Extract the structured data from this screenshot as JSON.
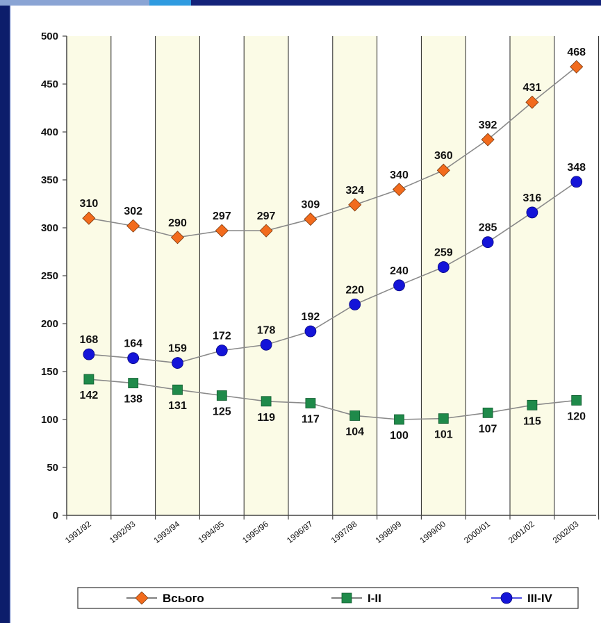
{
  "chart_data": {
    "type": "line",
    "categories": [
      "1991/92",
      "1992/93",
      "1993/94",
      "1994/95",
      "1995/96",
      "1996/97",
      "1997/98",
      "1998/99",
      "1999/00",
      "2000/01",
      "2001/02",
      "2002/03"
    ],
    "ylim": [
      0,
      500
    ],
    "yticks": [
      0,
      50,
      100,
      150,
      200,
      250,
      300,
      350,
      400,
      450,
      500
    ],
    "grid": "vertical",
    "legend_position": "bottom",
    "series": [
      {
        "name": "Всього",
        "marker": "diamond",
        "color": "#f26b1d",
        "values": [
          310,
          302,
          290,
          297,
          297,
          309,
          324,
          340,
          360,
          392,
          431,
          468
        ]
      },
      {
        "name": "I-II",
        "marker": "square",
        "color": "#1f8a4a",
        "values": [
          142,
          138,
          131,
          125,
          119,
          117,
          104,
          100,
          101,
          107,
          115,
          120
        ]
      },
      {
        "name": "III-IV",
        "marker": "circle",
        "color": "#1414d8",
        "values": [
          168,
          164,
          159,
          172,
          178,
          192,
          220,
          240,
          259,
          285,
          316,
          348
        ]
      }
    ],
    "colors": {
      "background": "#0c1d6b",
      "plot_fill_even": "#fbfbe6",
      "plot_fill_odd": "#ffffff"
    }
  }
}
